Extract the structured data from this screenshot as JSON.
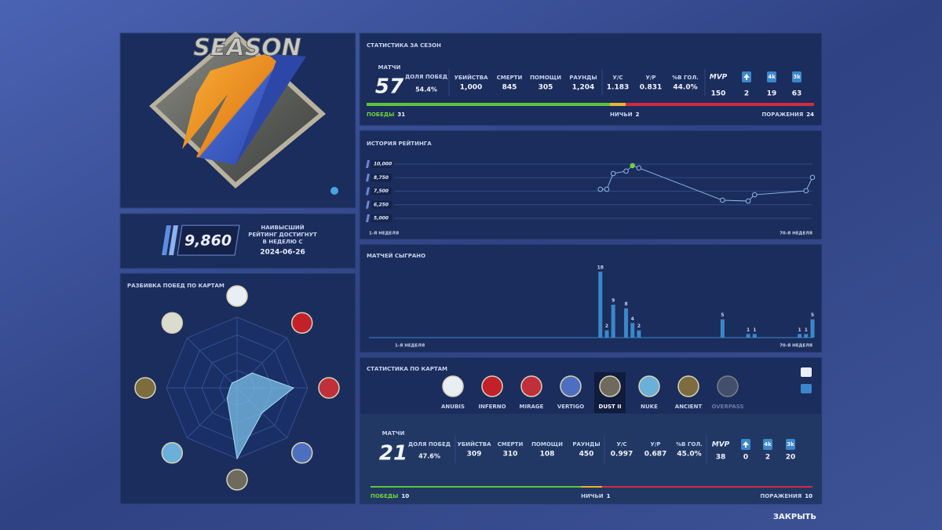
{
  "season_badge": {
    "title": "SEASON"
  },
  "best_rating": {
    "value": "9,860",
    "caption": [
      "НАИВЫСШИЙ",
      "РЕЙТИНГ ДОСТИГНУТ",
      "В НЕДЕЛЮ С"
    ],
    "date": "2024-06-26"
  },
  "season_stats": {
    "title": "СТАТИСТИКА ЗА СЕЗОН",
    "matches": {
      "label": "МАТЧИ",
      "value": 57
    },
    "win_rate": {
      "label": "ДОЛЯ ПОБЕД",
      "value": "54.4%"
    },
    "stats": [
      {
        "label": "УБИЙСТВА",
        "value": "1,000"
      },
      {
        "label": "СМЕРТИ",
        "value": 845
      },
      {
        "label": "ПОМОЩИ",
        "value": 305
      },
      {
        "label": "РАУНДЫ",
        "value": "1,204"
      },
      {
        "label": "У/С",
        "value": 1.183
      },
      {
        "label": "У/Р",
        "value": 0.831
      },
      {
        "label": "%В ГОЛ.",
        "value": "44.0%"
      }
    ],
    "extras": [
      {
        "label": "MVP",
        "value": 150
      },
      {
        "value": 2
      },
      {
        "label": "4k",
        "value": 19
      },
      {
        "label": "3k",
        "value": 63
      }
    ],
    "results": [
      {
        "label": "ПОБЕДЫ",
        "value": 31,
        "color": "#5cc53a"
      },
      {
        "label": "НИЧЬИ",
        "value": 2,
        "color": "#e8b62e"
      },
      {
        "label": "ПОРАЖЕНИЯ",
        "value": 24,
        "color": "#d22b42"
      }
    ]
  },
  "chart_data": [
    {
      "type": "line",
      "title": "ИСТОРИЯ РЕЙТИНГА",
      "x": [
        37,
        38,
        39,
        41,
        42,
        43,
        56,
        60,
        61,
        69,
        70
      ],
      "values": [
        7680,
        7680,
        9130,
        9350,
        9860,
        9640,
        6670,
        6590,
        7170,
        7540,
        8770
      ],
      "xlim": [
        1,
        70
      ],
      "xticks": [
        {
          "value": 1,
          "label": "1-Я НЕДЕЛЯ"
        },
        {
          "value": 70,
          "label": "70-Я НЕДЕЛЯ"
        }
      ],
      "ylim": [
        5000,
        10000
      ],
      "yticks": [
        {
          "value": 10000,
          "label": "10,000"
        },
        {
          "value": 8750,
          "label": "8,750"
        },
        {
          "value": 7500,
          "label": "7,500"
        },
        {
          "value": 6250,
          "label": "6,250"
        },
        {
          "value": 5000,
          "label": "5,000"
        }
      ],
      "color": "#8db6e6",
      "highlight_color": "#6fd23c",
      "grid": true
    },
    {
      "type": "bar",
      "title": "МАТЧЕЙ СЫГРАНО",
      "x": [
        37,
        38,
        39,
        41,
        42,
        43,
        56,
        60,
        61,
        68,
        69,
        70
      ],
      "values": [
        18,
        2,
        9,
        8,
        4,
        2,
        5,
        1,
        1,
        1,
        1,
        5
      ],
      "xlim": [
        1,
        70
      ],
      "xticks": [
        {
          "value": 1,
          "label": "1-Я НЕДЕЛЯ"
        },
        {
          "value": 70,
          "label": "70-Я НЕДЕЛЯ"
        }
      ],
      "color": "#3b87c9"
    },
    {
      "type": "radar",
      "title": "РАЗБИВКА ПОБЕД ПО КАРТАМ",
      "values": [
        1,
        3,
        8,
        5,
        10,
        2,
        1,
        1
      ],
      "color": "#7cc0e8"
    }
  ],
  "map_stats": {
    "title": "СТАТИСТИКА ПО КАРТАМ",
    "maps": [
      "ANUBIS",
      "INFERNO",
      "MIRAGE",
      "VERTIGO",
      "DUST II",
      "NUKE",
      "ANCIENT",
      "OVERPASS"
    ],
    "selected": "DUST II",
    "matches": {
      "label": "МАТЧИ",
      "value": 21
    },
    "win_rate": {
      "label": "ДОЛЯ ПОБЕД",
      "value": "47.6%"
    },
    "stats": [
      {
        "label": "УБИЙСТВА",
        "value": 309
      },
      {
        "label": "СМЕРТИ",
        "value": 310
      },
      {
        "label": "ПОМОЩИ",
        "value": 108
      },
      {
        "label": "РАУНДЫ",
        "value": 450
      },
      {
        "label": "У/С",
        "value": 0.997
      },
      {
        "label": "У/Р",
        "value": 0.687
      },
      {
        "label": "%В ГОЛ.",
        "value": "45.0%"
      }
    ],
    "extras": [
      {
        "label": "MVP",
        "value": 38
      },
      {
        "value": 0
      },
      {
        "label": "4k",
        "value": 2
      },
      {
        "label": "3k",
        "value": 20
      }
    ],
    "results": [
      {
        "label": "ПОБЕДЫ",
        "value": 10,
        "color": "#5cc53a"
      },
      {
        "label": "НИЧЬИ",
        "value": 1,
        "color": "#e8b62e"
      },
      {
        "label": "ПОРАЖЕНИЯ",
        "value": 10,
        "color": "#d22b42"
      }
    ]
  },
  "close_button": "ЗАКРЫТЬ"
}
